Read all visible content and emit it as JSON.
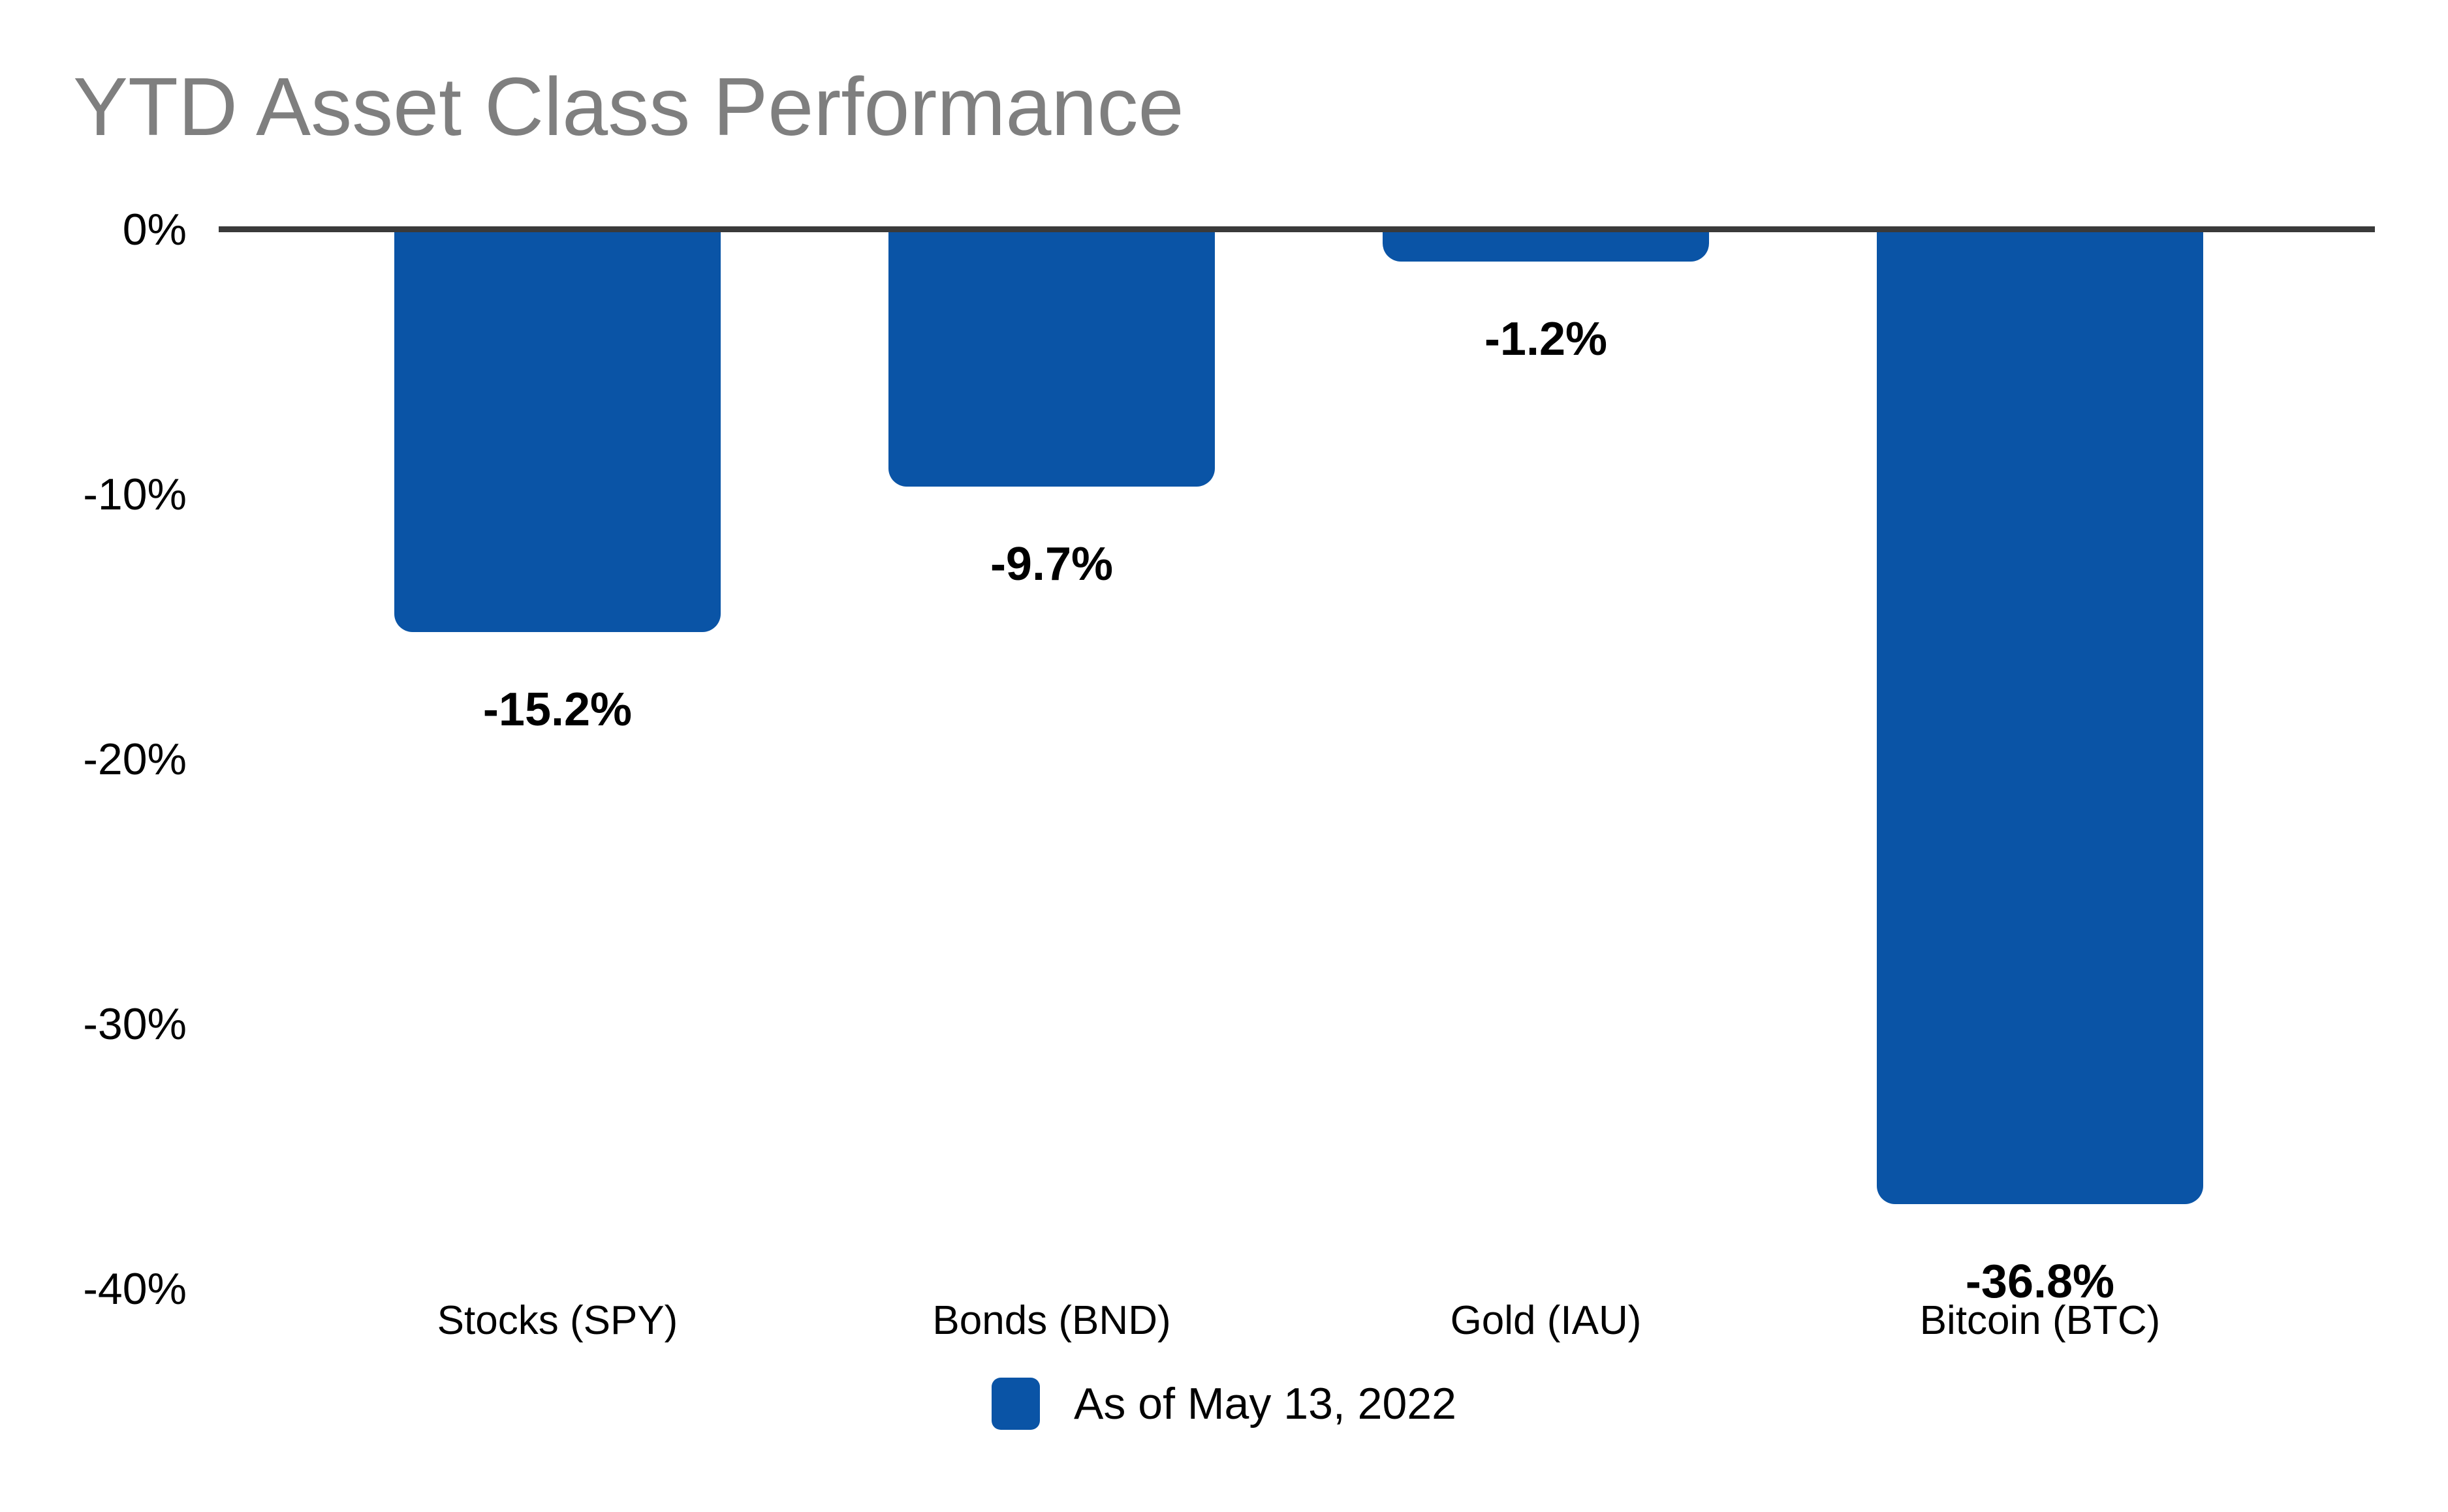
{
  "title": "YTD Asset Class Performance",
  "colors": {
    "bar": "#0a54a6",
    "axis_line": "#3a3a3a",
    "title_text": "#7f7f7f",
    "tick_text": "#000000",
    "value_label_text": "#000000",
    "category_text": "#000000",
    "legend_text": "#000000",
    "background": "#ffffff"
  },
  "legend": {
    "label": "As of May 13, 2022",
    "swatch_color": "#0a54a6",
    "position": "bottom-center"
  },
  "chart_data": {
    "type": "bar",
    "title": "YTD Asset Class Performance",
    "categories": [
      "Stocks (SPY)",
      "Bonds (BND)",
      "Gold (IAU)",
      "Bitcoin (BTC)"
    ],
    "values": [
      -15.2,
      -9.7,
      -1.2,
      -36.8
    ],
    "value_labels": [
      "-15.2%",
      "-9.7%",
      "-1.2%",
      "-36.8%"
    ],
    "xlabel": "",
    "ylabel": "",
    "ylim": [
      -40,
      0
    ],
    "yticks": [
      0,
      -10,
      -20,
      -30,
      -40
    ],
    "ytick_labels": [
      "0%",
      "-10%",
      "-20%",
      "-30%",
      "-40%"
    ],
    "grid": false,
    "bar_orientation": "vertical-down-from-zero",
    "legend_entries": [
      {
        "label": "As of May 13, 2022",
        "color": "#0a54a6"
      }
    ],
    "legend_position": "bottom"
  }
}
